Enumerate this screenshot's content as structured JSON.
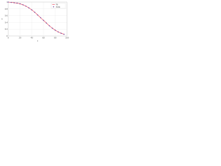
{
  "chart_data": {
    "type": "line",
    "x": [
      0,
      5,
      10,
      15,
      20,
      25,
      30,
      35,
      40,
      45,
      50,
      55,
      60,
      65,
      70,
      75,
      80,
      85,
      90,
      95
    ],
    "series": [
      {
        "name": "Fit",
        "color": "#e8334a",
        "style": "line",
        "values": [
          1.0,
          0.99,
          0.98,
          0.97,
          0.95,
          0.92,
          0.88,
          0.83,
          0.77,
          0.7,
          0.62,
          0.54,
          0.46,
          0.38,
          0.3,
          0.23,
          0.17,
          0.12,
          0.08,
          0.05
        ]
      },
      {
        "name": "Data",
        "color": "#7a4fa0",
        "style": "marker",
        "values": [
          1.0,
          0.99,
          0.98,
          0.97,
          0.95,
          0.92,
          0.88,
          0.83,
          0.77,
          0.7,
          0.62,
          0.54,
          0.46,
          0.38,
          0.3,
          0.23,
          0.17,
          0.12,
          0.08,
          0.05
        ]
      }
    ],
    "x_label": "x",
    "y_label": "y",
    "xlim": [
      0,
      100
    ],
    "xticks": [
      0,
      20,
      40,
      60,
      80,
      100
    ],
    "ylim": [
      0,
      1
    ],
    "yticks": [
      0,
      0.2,
      0.4,
      0.6,
      0.8,
      1
    ],
    "grid": true,
    "legend": "upper right"
  }
}
